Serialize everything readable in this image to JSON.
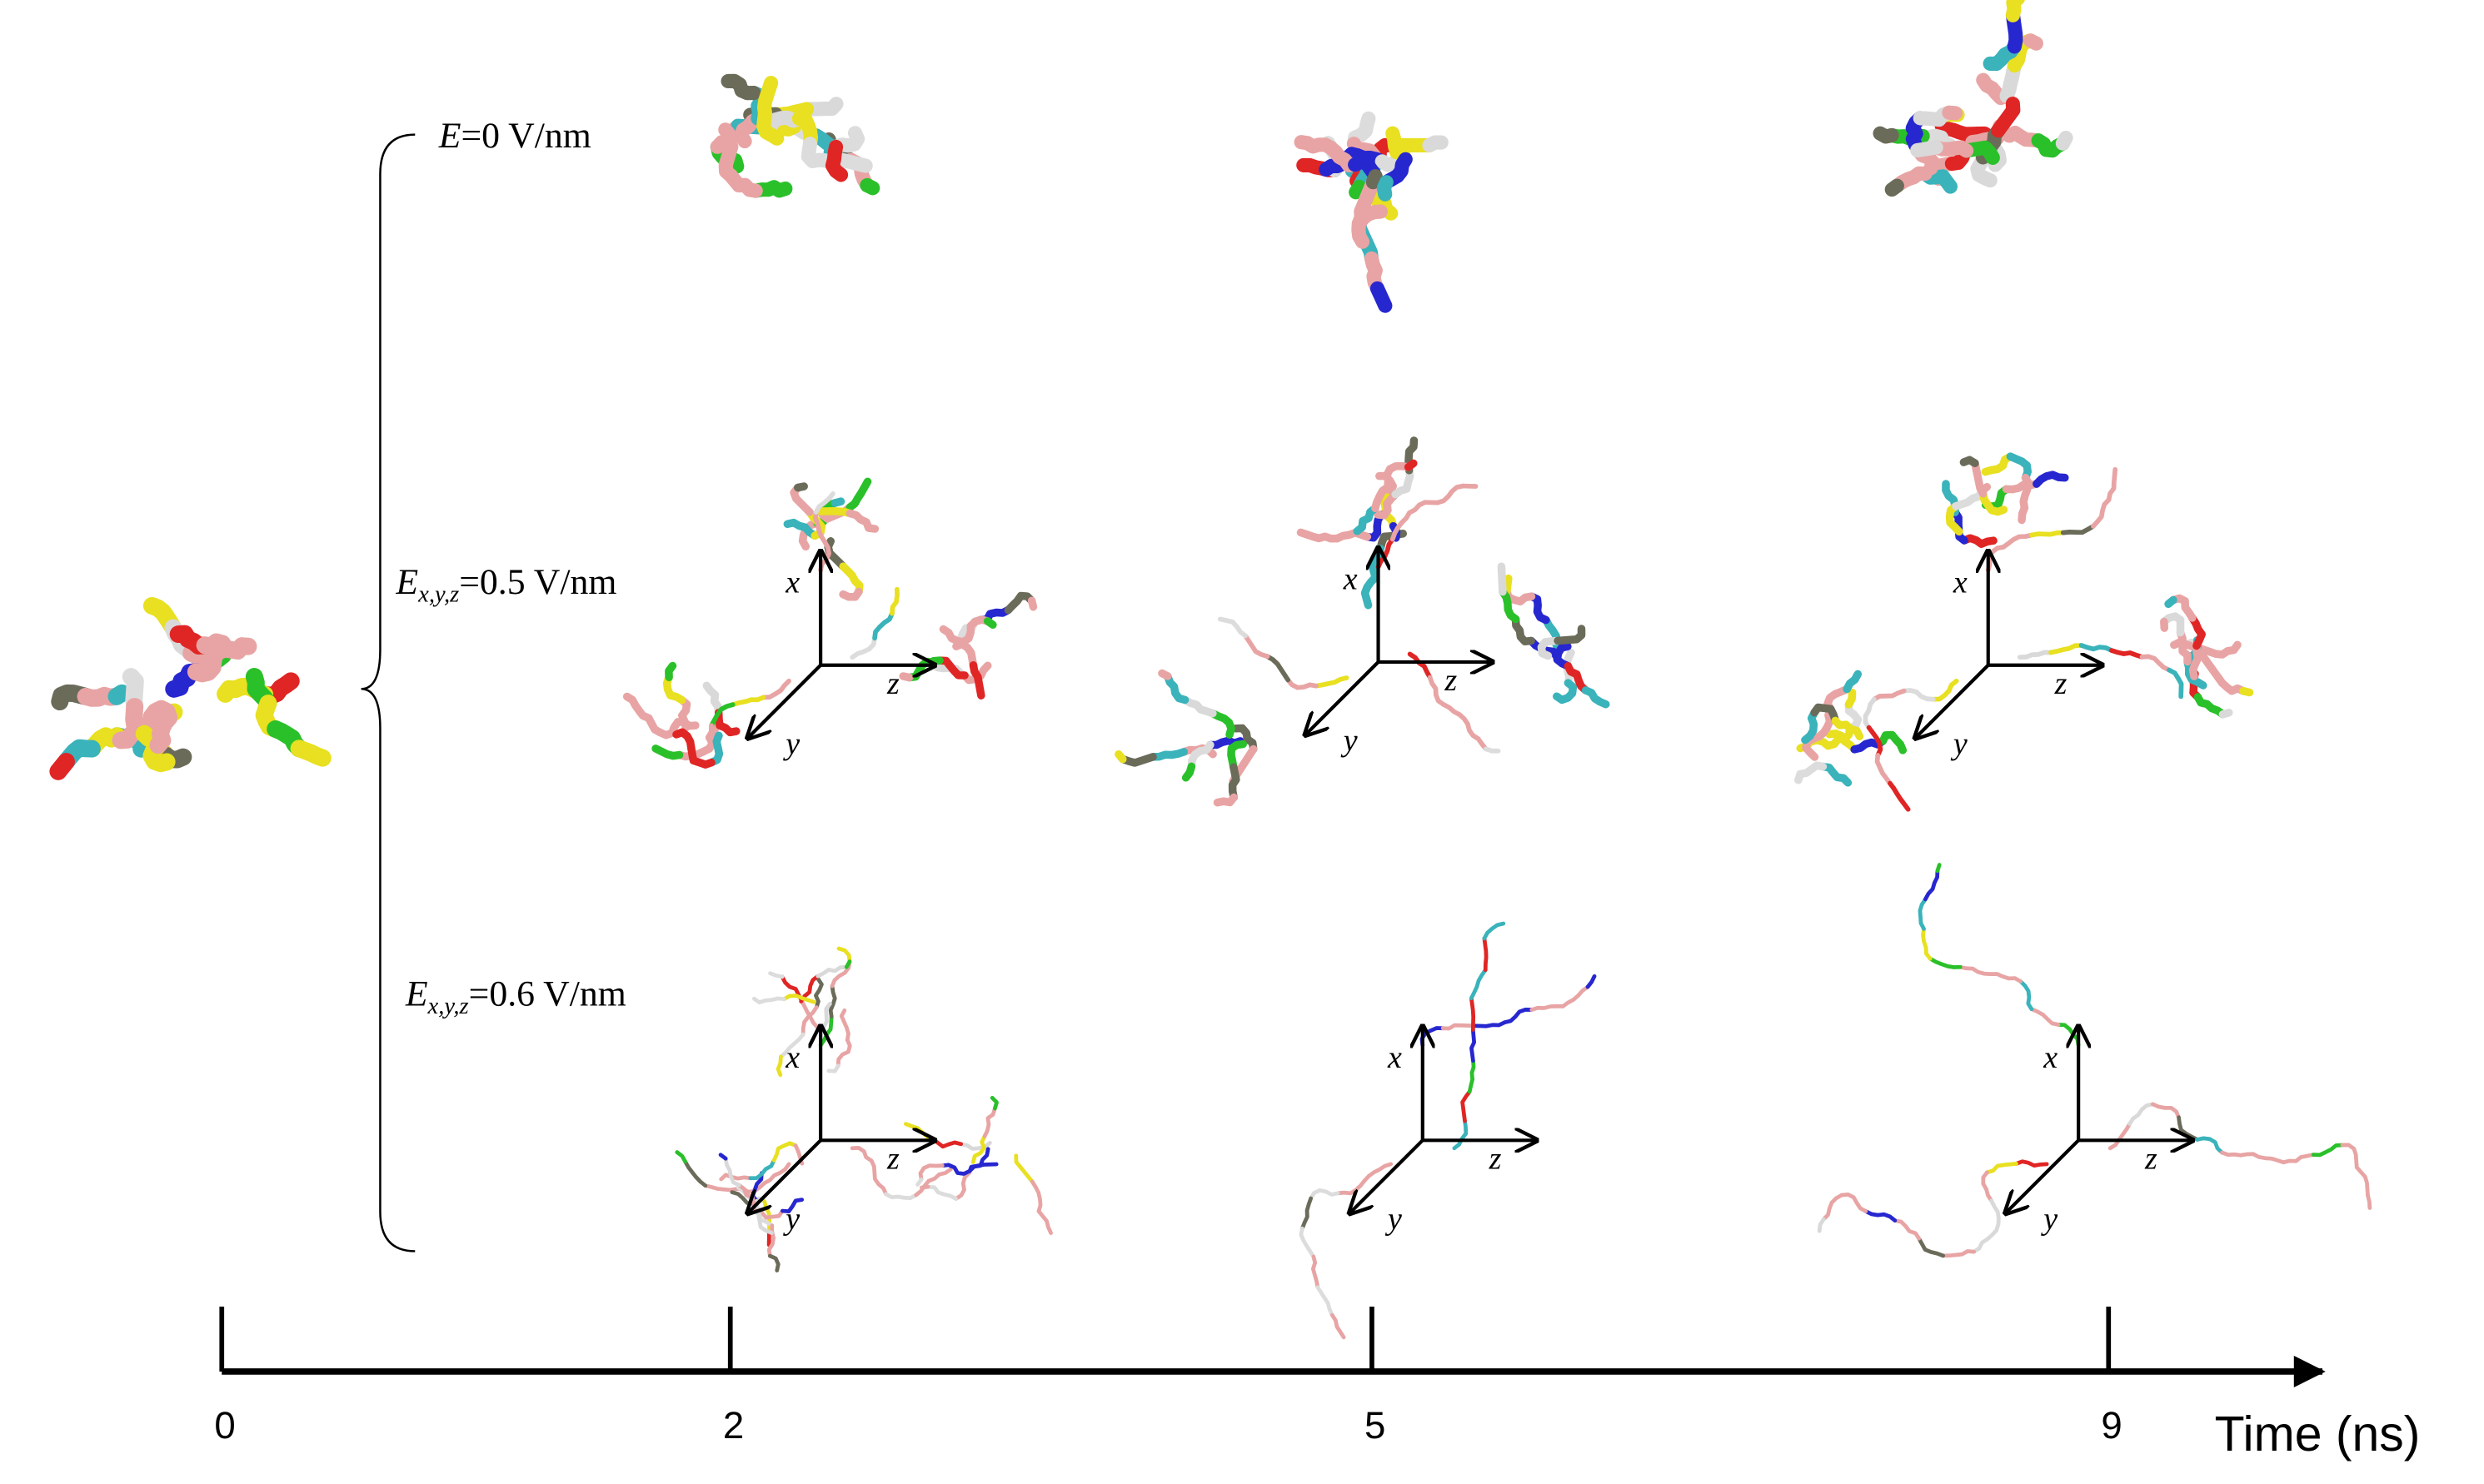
{
  "conditions": [
    {
      "symbol": "E",
      "text": "=0 V/nm"
    },
    {
      "symbol": "E",
      "subscript": "x,y,z",
      "text": "=0.5 V/nm"
    },
    {
      "symbol": "E",
      "subscript": "x,y,z",
      "text": "=0.6 V/nm"
    }
  ],
  "axis_labels": {
    "x": "x",
    "y": "y",
    "z": "z"
  },
  "timeline": {
    "ticks": [
      "0",
      "2",
      "5",
      "9"
    ],
    "label": "Time (ns)"
  }
}
